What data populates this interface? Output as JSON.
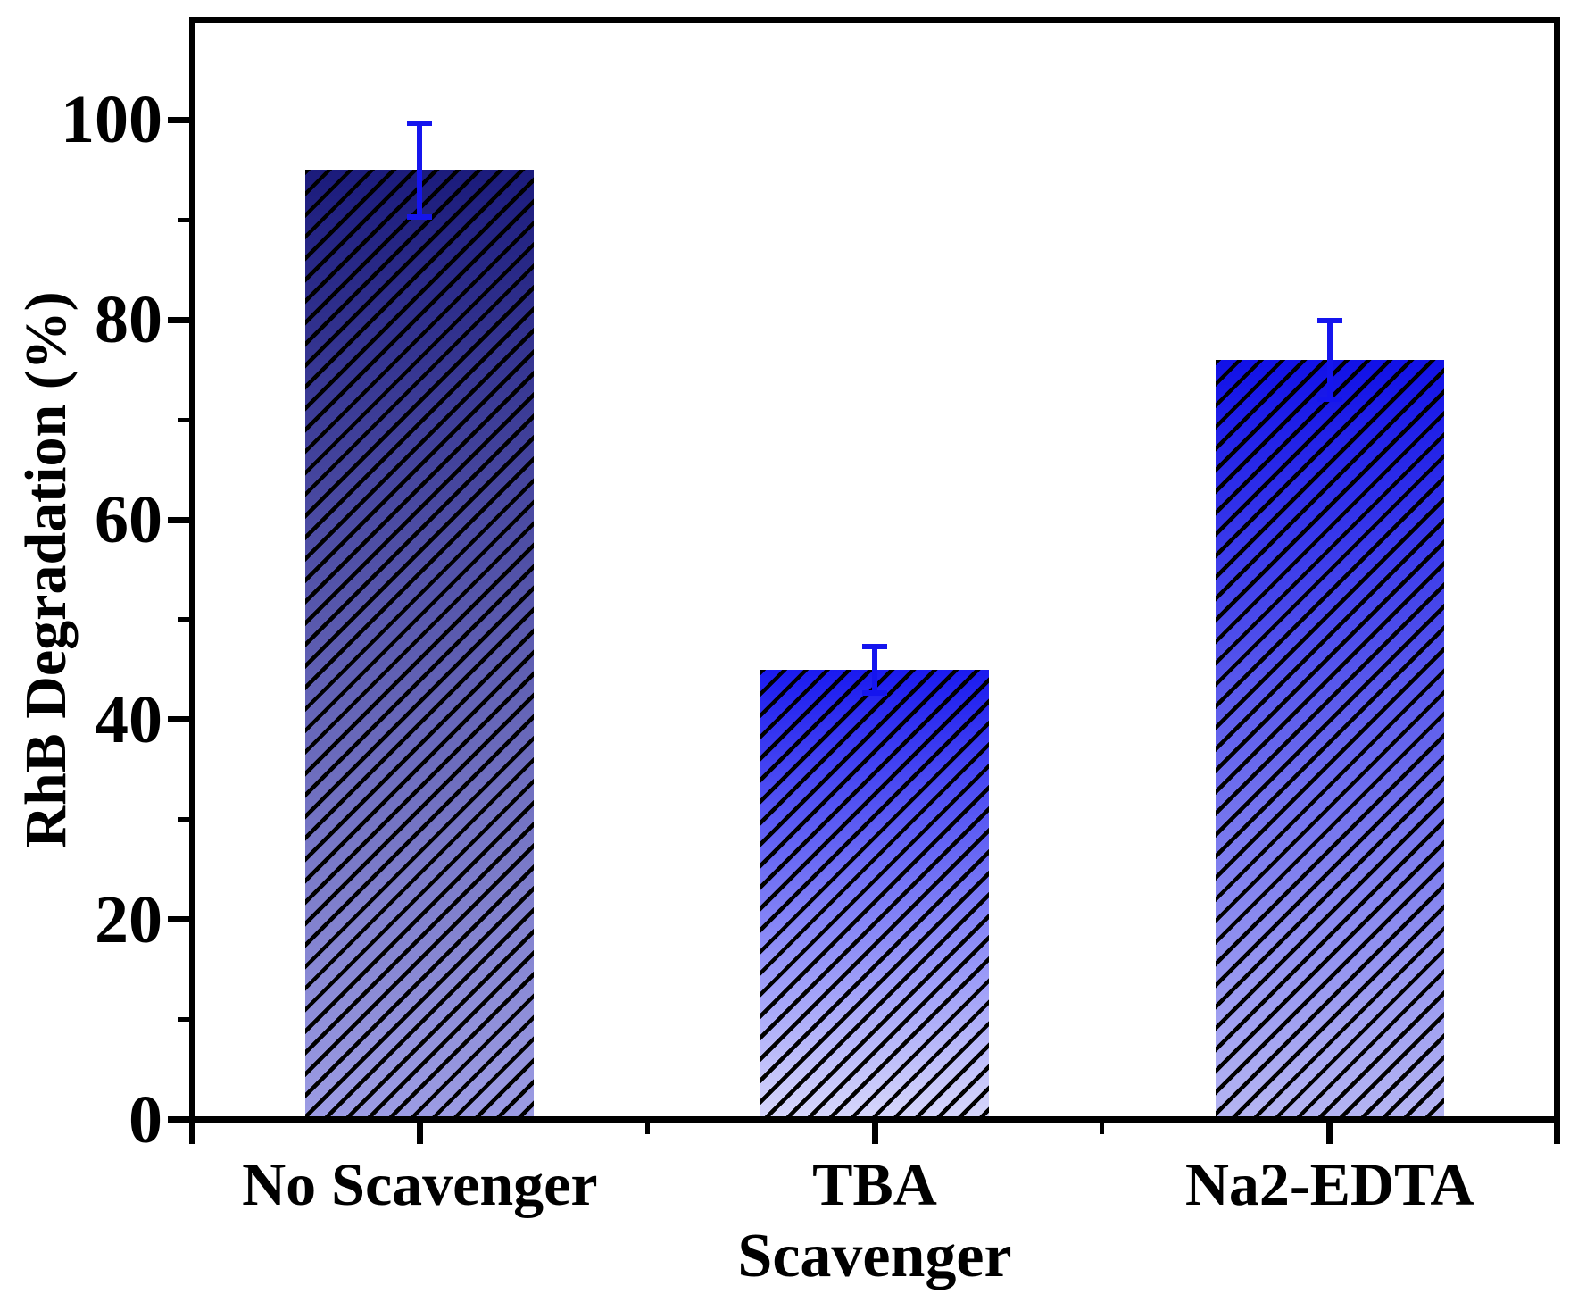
{
  "chart_data": {
    "type": "bar",
    "title": "",
    "xlabel": "Scavenger",
    "ylabel": "RhB Degradation (%)",
    "categories": [
      "No Scavenger",
      "TBA",
      "Na2-EDTA"
    ],
    "values": [
      95,
      45,
      76
    ],
    "errors": [
      4.7,
      2.3,
      3.9
    ],
    "ylim": [
      0,
      110
    ],
    "yticks_major": [
      0,
      20,
      40,
      60,
      80,
      100
    ],
    "yticks_minor": [
      10,
      30,
      50,
      70,
      90
    ],
    "grid": "off",
    "legend": "none",
    "bar_gradients": [
      {
        "top": "#1b1b7c",
        "bottom": "#9c9ce4"
      },
      {
        "top": "#1a1aef",
        "bottom": "#d6d6fb"
      },
      {
        "top": "#1111e7",
        "bottom": "#b5b5f2"
      }
    ],
    "hatch": {
      "style": "diagonal-forward",
      "color": "#000000"
    },
    "error_bar_color": "#1515ee",
    "axis_color": "#000000",
    "background": "#ffffff"
  }
}
